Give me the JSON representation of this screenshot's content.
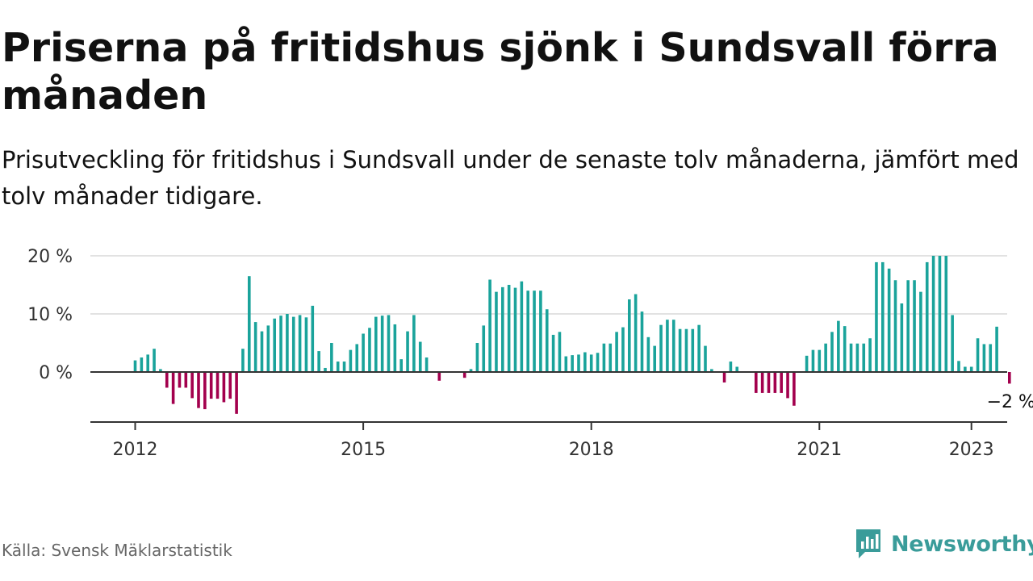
{
  "header": {
    "title": "Priserna på fritidshus sjönk i Sundsvall förra månaden",
    "subtitle": "Prisutveckling för fritidshus i Sundsvall under de senaste tolv månaderna, jämfört med tolv månader tidigare."
  },
  "footer": {
    "source": "Källa: Svensk Mäklarstatistik",
    "brand": "Newsworthy"
  },
  "colors": {
    "positive": "#1aa39b",
    "negative": "#a3004d",
    "axis": "#333333",
    "grid": "#d9d9d9",
    "brand": "#3a9c9a"
  },
  "chart_data": {
    "type": "bar",
    "y_unit": "%",
    "ylim": [
      -8.5,
      20
    ],
    "y_ticks": [
      0,
      10,
      20
    ],
    "y_tick_labels": [
      "0 %",
      "10 %",
      "20 %"
    ],
    "x_tick_labels": [
      "2012",
      "2015",
      "2018",
      "2021",
      "2023"
    ],
    "x_tick_dates": [
      "2012-01",
      "2015-01",
      "2018-01",
      "2021-01",
      "2023-01"
    ],
    "grid": true,
    "last_value_label": "−2 %",
    "series": [
      {
        "start": "2012-01",
        "frequency": "monthly",
        "values": [
          2,
          2.5,
          3,
          4,
          0.5,
          -2.7,
          -5.5,
          -2.7,
          -2.7,
          -4.5,
          -6.2,
          -6.4,
          -4.6,
          -4.6,
          -5.2,
          -4.6,
          -7.2,
          4,
          16.5,
          8.6,
          7,
          8,
          9.2,
          9.7,
          10,
          9.5,
          9.8,
          9.4,
          11.4,
          3.6,
          0.7,
          5,
          1.8,
          1.8,
          3.8,
          4.8,
          6.6,
          7.6,
          9.5,
          9.7,
          9.8,
          8.2,
          2.2,
          7,
          9.8,
          5.2,
          2.5,
          0,
          -1.5,
          0,
          0,
          0,
          -1,
          0.5,
          5,
          8,
          15.9,
          13.8,
          14.6,
          15,
          14.5,
          15.6,
          14,
          14,
          14,
          10.8,
          6.4,
          6.9,
          2.7,
          2.9,
          3,
          3.4,
          3,
          3.3,
          4.9,
          4.9,
          6.9,
          7.7,
          12.5,
          13.4,
          10.4,
          6,
          4.5,
          8.1,
          9,
          9,
          7.4,
          7.4,
          7.4,
          8.1,
          4.5,
          0.5,
          0,
          -1.8,
          1.8,
          0.9,
          0,
          0,
          -3.6,
          -3.6,
          -3.6,
          -3.6,
          -3.6,
          -4.5,
          -5.8,
          0,
          2.8,
          3.8,
          3.8,
          4.9,
          6.9,
          8.8,
          7.9,
          4.9,
          4.9,
          4.9,
          5.8,
          18.9,
          18.9,
          17.8,
          15.8,
          11.8,
          15.8,
          15.8,
          13.8,
          18.9,
          20,
          20,
          20,
          9.8,
          1.9,
          0.9,
          0.9,
          5.8,
          4.8,
          4.8,
          7.8,
          0,
          -2
        ]
      }
    ]
  }
}
